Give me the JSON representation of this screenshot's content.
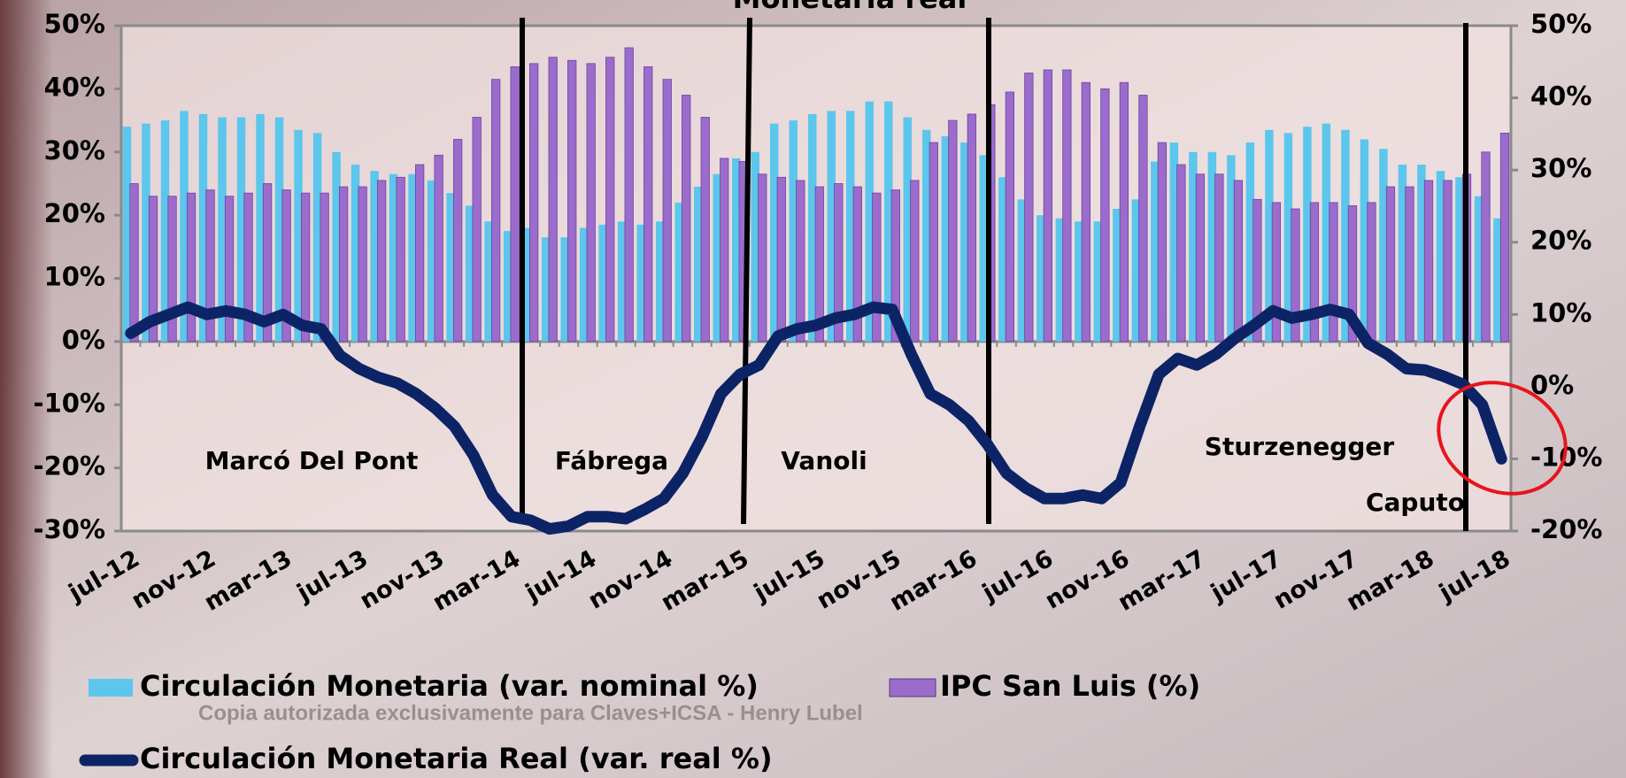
{
  "chart_data": {
    "type": "bar-line",
    "title": "Monetaria real",
    "categories": [
      "jul-12",
      null,
      null,
      null,
      "nov-12",
      null,
      null,
      null,
      "mar-13",
      null,
      null,
      null,
      "jul-13",
      null,
      null,
      null,
      "nov-13",
      null,
      null,
      null,
      "mar-14",
      null,
      null,
      null,
      "jul-14",
      null,
      null,
      null,
      "nov-14",
      null,
      null,
      null,
      "mar-15",
      null,
      null,
      null,
      "jul-15",
      null,
      null,
      null,
      "nov-15",
      null,
      null,
      null,
      "mar-16",
      null,
      null,
      null,
      "jul-16",
      null,
      null,
      null,
      "nov-16",
      null,
      null,
      null,
      "mar-17",
      null,
      null,
      null,
      "jul-17",
      null,
      null,
      null,
      "nov-17",
      null,
      null,
      null,
      "mar-18",
      null,
      null,
      null,
      "jul-18"
    ],
    "series": [
      {
        "name": "Circulación Monetaria (var. nominal %)",
        "color": "#5cc6ec",
        "axis": "y",
        "values": [
          34,
          34.5,
          35,
          36.5,
          36,
          35.5,
          35.5,
          36,
          35.5,
          33.5,
          33,
          30,
          28,
          27,
          26.5,
          26.5,
          25.5,
          23.5,
          21.5,
          19,
          17.5,
          18,
          16.5,
          16.5,
          18,
          18.5,
          19,
          18.5,
          19,
          22,
          24.5,
          26.5,
          29,
          30,
          34.5,
          35,
          36,
          36.5,
          36.5,
          38,
          38,
          35.5,
          33.5,
          32.5,
          31.5,
          29.5,
          26,
          22.5,
          20,
          19.5,
          19,
          19,
          21,
          22.5,
          28.5,
          31.5,
          30,
          30,
          29.5,
          31.5,
          33.5,
          33,
          34,
          34.5,
          33.5,
          32,
          30.5,
          28,
          28,
          27,
          26,
          23,
          19.5
        ]
      },
      {
        "name": "IPC San Luis (%)",
        "color": "#9b6ccc",
        "axis": "y",
        "values": [
          25,
          23,
          23,
          23.5,
          24,
          23,
          23.5,
          25,
          24,
          23.5,
          23.5,
          24.5,
          24.5,
          25.5,
          26,
          28,
          29.5,
          32,
          35.5,
          41.5,
          43.5,
          44,
          45,
          44.5,
          44,
          45,
          46.5,
          43.5,
          41.5,
          39,
          35.5,
          29,
          28.5,
          26.5,
          26,
          25.5,
          24.5,
          25,
          24.5,
          23.5,
          24,
          25.5,
          31.5,
          35,
          36,
          37.5,
          39.5,
          42.5,
          43,
          43,
          41,
          40,
          41,
          39,
          31.5,
          28,
          26.5,
          26.5,
          25.5,
          22.5,
          22,
          21,
          22,
          22,
          21.5,
          22,
          24.5,
          24.5,
          25.5,
          25.5,
          26.5,
          30,
          33
        ]
      },
      {
        "name": "Circulación Monetaria Real (var. real %)",
        "color": "#0c2466",
        "axis": "y2",
        "values": [
          7.4,
          9,
          10,
          11,
          10,
          10.5,
          10,
          9,
          10,
          8.5,
          8,
          4.3,
          2.5,
          1.3,
          0.5,
          -1,
          -3,
          -5.5,
          -9.5,
          -15,
          -18,
          -18.5,
          -19.7,
          -19.3,
          -18,
          -18,
          -18.3,
          -17,
          -15.5,
          -12,
          -7,
          -1,
          1.7,
          3,
          7,
          8,
          8.5,
          9.5,
          10,
          11,
          10.7,
          4.5,
          -1,
          -2.5,
          -4.7,
          -8,
          -12,
          -14,
          -15.5,
          -15.5,
          -15,
          -15.5,
          -13.3,
          -5.5,
          1.7,
          3.9,
          3,
          4.5,
          6.7,
          8.5,
          10.5,
          9.5,
          10,
          10.7,
          10,
          6,
          4.5,
          2.5,
          2.3,
          1.4,
          0.3,
          -2.5,
          -10
        ]
      }
    ],
    "ylim": [
      -30,
      50
    ],
    "yticks": [
      {
        "value": -30,
        "label": "-30%"
      },
      {
        "value": -20,
        "label": "-20%"
      },
      {
        "value": -10,
        "label": "-10%"
      },
      {
        "value": 0,
        "label": "0%"
      },
      {
        "value": 10,
        "label": "10%"
      },
      {
        "value": 20,
        "label": "20%"
      },
      {
        "value": 30,
        "label": "30%"
      },
      {
        "value": 40,
        "label": "40%"
      },
      {
        "value": 50,
        "label": "50%"
      }
    ],
    "y2lim": [
      -20,
      50
    ],
    "y2ticks": [
      {
        "value": -20,
        "label": "-20%"
      },
      {
        "value": -10,
        "label": "-10%"
      },
      {
        "value": 0,
        "label": "0%"
      },
      {
        "value": 10,
        "label": "10%"
      },
      {
        "value": 20,
        "label": "20%"
      },
      {
        "value": 30,
        "label": "30%"
      },
      {
        "value": 40,
        "label": "40%"
      },
      {
        "value": 50,
        "label": "50%"
      }
    ],
    "annotations": [
      "Marcó Del Pont",
      "Fábrega",
      "Vanoli",
      "Sturzenegger",
      "Caputo"
    ],
    "watermark": "Copia autorizada exclusivamente para Claves+ICSA - Henry Lubel"
  }
}
